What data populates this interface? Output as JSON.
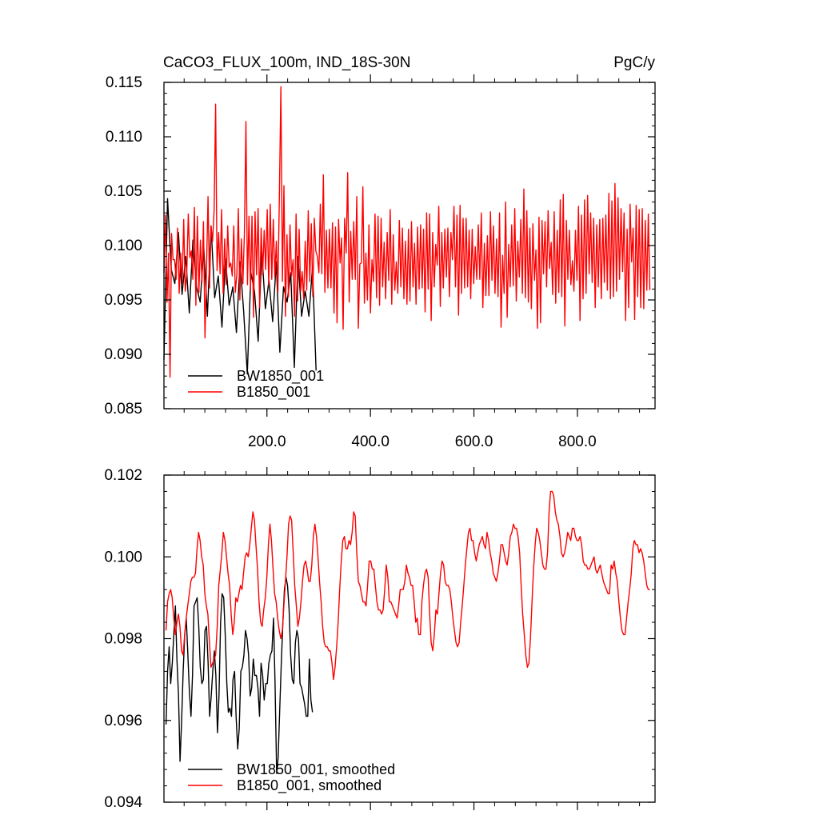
{
  "title_left": "CaCO3_FLUX_100m, IND_18S-30N",
  "title_right": "PgC/y",
  "chart_data": [
    {
      "type": "line",
      "title": "CaCO3_FLUX_100m, IND_18S-30N",
      "units": "PgC/y",
      "xlim": [
        1,
        950
      ],
      "ylim": [
        0.085,
        0.115
      ],
      "x_ticks": [
        200,
        400,
        600,
        800
      ],
      "x_tick_labels": [
        "200.0",
        "400.0",
        "600.0",
        "800.0"
      ],
      "y_ticks": [
        0.085,
        0.09,
        0.095,
        0.1,
        0.105,
        0.11,
        0.115
      ],
      "y_tick_labels": [
        "0.085",
        "0.090",
        "0.095",
        "0.100",
        "0.105",
        "0.110",
        "0.115"
      ],
      "legend_position": "bottom-left",
      "grid": false,
      "series": [
        {
          "name": "BW1850_001",
          "color": "#000000",
          "x_range": [
            1,
            295
          ],
          "x_step": 7,
          "values": [
            0.0895,
            0.1043,
            0.0978,
            0.0965,
            0.1012,
            0.0955,
            0.099,
            0.0938,
            0.1005,
            0.0962,
            0.0948,
            0.0998,
            0.0935,
            0.1018,
            0.0952,
            0.0972,
            0.0925,
            0.0988,
            0.0945,
            0.0962,
            0.092,
            0.0985,
            0.094,
            0.0882,
            0.0975,
            0.0958,
            0.0912,
            0.0995,
            0.0942,
            0.0968,
            0.093,
            0.0985,
            0.0902,
            0.0962,
            0.0948,
            0.0975,
            0.0888,
            0.099,
            0.0935,
            0.0958,
            0.0935,
            0.098,
            0.0885
          ]
        },
        {
          "name": "B1850_001",
          "color": "#ff0000",
          "x_range": [
            1,
            940
          ],
          "x_step": 3,
          "values": [
            0.0975,
            0.1028,
            0.0948,
            0.0993,
            0.0879,
            0.1011,
            0.0987,
            0.0987,
            0.0969,
            0.1016,
            0.0956,
            0.0993,
            0.0965,
            0.1024,
            0.0958,
            0.0974,
            0.1029,
            0.0989,
            0.0995,
            0.0969,
            0.1035,
            0.0945,
            0.1027,
            0.0957,
            0.1005,
            0.0966,
            0.1022,
            0.0915,
            0.0978,
            0.1045,
            0.0961,
            0.1018,
            0.1004,
            0.1032,
            0.113,
            0.0977,
            0.1012,
            0.0974,
            0.1033,
            0.0956,
            0.1006,
            0.0964,
            0.1018,
            0.098,
            0.0984,
            0.0972,
            0.1018,
            0.0957,
            0.0973,
            0.1034,
            0.095,
            0.1006,
            0.0965,
            0.1012,
            0.1114,
            0.0964,
            0.1027,
            0.0959,
            0.1027,
            0.0934,
            0.1031,
            0.0973,
            0.1034,
            0.0943,
            0.1016,
            0.0973,
            0.1014,
            0.0978,
            0.1033,
            0.0963,
            0.1038,
            0.0969,
            0.1024,
            0.0971,
            0.1004,
            0.0957,
            0.1045,
            0.1146,
            0.0967,
            0.1055,
            0.0935,
            0.101,
            0.0953,
            0.1019,
            0.0972,
            0.0987,
            0.0935,
            0.1029,
            0.0949,
            0.1015,
            0.0958,
            0.0976,
            0.0951,
            0.1004,
            0.0959,
            0.1032,
            0.0967,
            0.102,
            0.0953,
            0.1025,
            0.0995,
            0.099,
            0.0975,
            0.1038,
            0.0974,
            0.1065,
            0.0957,
            0.1014,
            0.0961,
            0.1015,
            0.0961,
            0.1021,
            0.0938,
            0.1017,
            0.0929,
            0.1024,
            0.0984,
            0.1007,
            0.0923,
            0.1025,
            0.0993,
            0.1067,
            0.0948,
            0.1013,
            0.0969,
            0.1022,
            0.0969,
            0.1045,
            0.0924,
            0.0983,
            0.0984,
            0.1054,
            0.0947,
            0.0993,
            0.095,
            0.1019,
            0.0938,
            0.0987,
            0.0967,
            0.1029,
            0.0952,
            0.1027,
            0.0945,
            0.1025,
            0.0962,
            0.1003,
            0.0951,
            0.1012,
            0.0968,
            0.1033,
            0.0946,
            0.101,
            0.0959,
            0.0985,
            0.0956,
            0.1023,
            0.0962,
            0.1016,
            0.0951,
            0.1004,
            0.0946,
            0.1015,
            0.0949,
            0.1022,
            0.0962,
            0.1002,
            0.0946,
            0.1017,
            0.096,
            0.1019,
            0.0961,
            0.1015,
            0.0939,
            0.103,
            0.096,
            0.1029,
            0.0931,
            0.1012,
            0.0962,
            0.1001,
            0.0982,
            0.1036,
            0.0944,
            0.1012,
            0.0961,
            0.1015,
            0.0971,
            0.1016,
            0.0953,
            0.1012,
            0.0987,
            0.1036,
            0.0962,
            0.1028,
            0.0936,
            0.1037,
            0.0956,
            0.1025,
            0.0961,
            0.1025,
            0.0962,
            0.1014,
            0.0951,
            0.1015,
            0.0965,
            0.0999,
            0.0969,
            0.1019,
            0.0969,
            0.103,
            0.0943,
            0.1002,
            0.0954,
            0.1009,
            0.0954,
            0.1031,
            0.0968,
            0.1018,
            0.0956,
            0.1006,
            0.0953,
            0.103,
            0.0925,
            0.0991,
            0.0956,
            0.104,
            0.0934,
            0.1001,
            0.0962,
            0.1019,
            0.0963,
            0.1034,
            0.0949,
            0.1004,
            0.0971,
            0.1024,
            0.0956,
            0.1052,
            0.0952,
            0.1032,
            0.0948,
            0.1016,
            0.0942,
            0.102,
            0.0968,
            0.0996,
            0.0924,
            0.1026,
            0.0929,
            0.1023,
            0.0974,
            0.1022,
            0.0962,
            0.1032,
            0.0979,
            0.1003,
            0.0955,
            0.1031,
            0.0947,
            0.1014,
            0.0957,
            0.1042,
            0.0953,
            0.1047,
            0.0926,
            0.1023,
            0.0969,
            0.1014,
            0.0964,
            0.0986,
            0.0958,
            0.1014,
            0.0968,
            0.1036,
            0.0931,
            0.1028,
            0.0951,
            0.1042,
            0.0956,
            0.1046,
            0.0974,
            0.103,
            0.0966,
            0.1025,
            0.0943,
            0.1019,
            0.0962,
            0.1024,
            0.0951,
            0.1025,
            0.0966,
            0.1028,
            0.0959,
            0.1048,
            0.0951,
            0.1041,
            0.0953,
            0.1057,
            0.0958,
            0.1044,
            0.0969,
            0.1034,
            0.0976,
            0.103,
            0.0931,
            0.1015,
            0.0943,
            0.1038,
            0.0985,
            0.1016,
            0.0932,
            0.1037,
            0.0953,
            0.1033,
            0.0943,
            0.1034,
            0.0942,
            0.1023,
            0.0959,
            0.1029,
            0.0959
          ]
        }
      ]
    },
    {
      "type": "line",
      "xlim": [
        1,
        950
      ],
      "ylim": [
        0.094,
        0.102
      ],
      "x_ticks": [
        200,
        400,
        600,
        800
      ],
      "x_tick_labels": [],
      "y_ticks": [
        0.094,
        0.096,
        0.098,
        0.1,
        0.102
      ],
      "y_tick_labels": [
        "0.094",
        "0.096",
        "0.098",
        "0.100",
        "0.102"
      ],
      "legend_position": "bottom-left",
      "grid": false,
      "series": [
        {
          "name": "BW1850_001, smoothed",
          "color": "#000000",
          "x_range": [
            5,
            288
          ],
          "x_step": 3,
          "values": [
            0.0959,
            0.0972,
            0.0978,
            0.0969,
            0.0974,
            0.0981,
            0.0988,
            0.0975,
            0.0966,
            0.095,
            0.096,
            0.0972,
            0.0981,
            0.0985,
            0.0976,
            0.0967,
            0.0961,
            0.0971,
            0.0988,
            0.0989,
            0.099,
            0.0983,
            0.0973,
            0.0969,
            0.097,
            0.0982,
            0.0983,
            0.0974,
            0.0961,
            0.0966,
            0.0972,
            0.0977,
            0.0971,
            0.0957,
            0.0966,
            0.0984,
            0.0991,
            0.099,
            0.0981,
            0.0969,
            0.0962,
            0.0963,
            0.0961,
            0.097,
            0.0972,
            0.0961,
            0.0953,
            0.0958,
            0.0972,
            0.0973,
            0.0976,
            0.0982,
            0.098,
            0.0976,
            0.0966,
            0.0968,
            0.0975,
            0.0971,
            0.0971,
            0.0968,
            0.0961,
            0.0974,
            0.0971,
            0.0965,
            0.0969,
            0.0969,
            0.0974,
            0.0976,
            0.0977,
            0.0985,
            0.0969,
            0.0947,
            0.0951,
            0.0963,
            0.0974,
            0.0984,
            0.0992,
            0.0995,
            0.0993,
            0.0987,
            0.0976,
            0.097,
            0.0969,
            0.0979,
            0.0982,
            0.098,
            0.0969,
            0.0968,
            0.0966,
            0.0964,
            0.0961,
            0.0961,
            0.0975,
            0.0965,
            0.0962
          ]
        },
        {
          "name": "B1850_001, smoothed",
          "color": "#ff0000",
          "x_range": [
            5,
            940
          ],
          "x_step": 3,
          "values": [
            0.0982,
            0.0989,
            0.0991,
            0.0992,
            0.099,
            0.0985,
            0.0981,
            0.0984,
            0.0986,
            0.0983,
            0.0977,
            0.0976,
            0.0981,
            0.0985,
            0.0988,
            0.0991,
            0.0994,
            0.0995,
            0.0995,
            0.0996,
            0.1002,
            0.1006,
            0.1004,
            0.1,
            0.0998,
            0.0991,
            0.0988,
            0.0986,
            0.0979,
            0.0973,
            0.0974,
            0.0975,
            0.0976,
            0.0983,
            0.0993,
            0.0997,
            0.1001,
            0.1006,
            0.1004,
            0.1,
            0.0996,
            0.0993,
            0.0986,
            0.0981,
            0.0984,
            0.099,
            0.0989,
            0.0991,
            0.0993,
            0.0992,
            0.0996,
            0.1,
            0.1001,
            0.1,
            0.1003,
            0.1007,
            0.1011,
            0.1009,
            0.1003,
            0.0997,
            0.0989,
            0.0984,
            0.0983,
            0.0987,
            0.099,
            0.0995,
            0.1003,
            0.1008,
            0.1004,
            0.0997,
            0.0991,
            0.0989,
            0.0985,
            0.0982,
            0.098,
            0.0982,
            0.0988,
            0.0994,
            0.1,
            0.1008,
            0.101,
            0.1009,
            0.1001,
            0.0993,
            0.0988,
            0.0983,
            0.0985,
            0.0989,
            0.0994,
            0.0998,
            0.0999,
            0.0997,
            0.0994,
            0.0994,
            0.0998,
            0.1005,
            0.1008,
            0.1005,
            0.1,
            0.0994,
            0.0989,
            0.0983,
            0.0979,
            0.0978,
            0.0978,
            0.0977,
            0.0977,
            0.0974,
            0.097,
            0.0973,
            0.0978,
            0.0984,
            0.0992,
            0.0999,
            0.1004,
            0.1005,
            0.1002,
            0.1002,
            0.1004,
            0.1003,
            0.1006,
            0.1011,
            0.101,
            0.1001,
            0.0994,
            0.0993,
            0.0991,
            0.0989,
            0.0989,
            0.0988,
            0.0993,
            0.0999,
            0.0999,
            0.0997,
            0.0997,
            0.0993,
            0.0989,
            0.0987,
            0.0987,
            0.0986,
            0.0987,
            0.0992,
            0.0998,
            0.0995,
            0.0989,
            0.0989,
            0.0988,
            0.0987,
            0.0986,
            0.0985,
            0.0988,
            0.0992,
            0.0992,
            0.0992,
            0.0994,
            0.0998,
            0.0996,
            0.0995,
            0.0993,
            0.0993,
            0.0989,
            0.0984,
            0.0985,
            0.0981,
            0.0981,
            0.0989,
            0.0993,
            0.0996,
            0.0997,
            0.0995,
            0.0986,
            0.0979,
            0.0977,
            0.0981,
            0.0987,
            0.0986,
            0.0991,
            0.0996,
            0.0999,
            0.0998,
            0.0994,
            0.0993,
            0.0993,
            0.0992,
            0.0989,
            0.0985,
            0.0982,
            0.0979,
            0.0978,
            0.0979,
            0.0984,
            0.0988,
            0.0993,
            0.0998,
            0.1002,
            0.1006,
            0.1007,
            0.1004,
            0.1004,
            0.1001,
            0.0999,
            0.1001,
            0.1003,
            0.1004,
            0.1005,
            0.1003,
            0.1002,
            0.1006,
            0.1004,
            0.1001,
            0.0999,
            0.0996,
            0.0995,
            0.0994,
            0.0996,
            0.0999,
            0.1003,
            0.1003,
            0.1001,
            0.0999,
            0.0998,
            0.1001,
            0.1005,
            0.1006,
            0.1008,
            0.1007,
            0.1007,
            0.1005,
            0.1001,
            0.0993,
            0.0986,
            0.0981,
            0.0976,
            0.0973,
            0.0974,
            0.098,
            0.0989,
            0.0997,
            0.1003,
            0.1007,
            0.1006,
            0.1004,
            0.1001,
            0.0998,
            0.0997,
            0.0997,
            0.1001,
            0.1011,
            0.1016,
            0.1016,
            0.1015,
            0.1011,
            0.1009,
            0.1008,
            0.1005,
            0.1001,
            0.1,
            0.1001,
            0.1003,
            0.1006,
            0.1005,
            0.1004,
            0.1007,
            0.1007,
            0.1005,
            0.1004,
            0.1004,
            0.1005,
            0.1003,
            0.0999,
            0.0998,
            0.0998,
            0.0997,
            0.0997,
            0.0998,
            0.0999,
            0.1,
            0.0997,
            0.0996,
            0.0997,
            0.0998,
            0.0996,
            0.0994,
            0.0993,
            0.0992,
            0.0991,
            0.0991,
            0.0998,
            0.0997,
            0.0999,
            0.0996,
            0.0994,
            0.0989,
            0.0985,
            0.0982,
            0.0981,
            0.0981,
            0.0985,
            0.0989,
            0.0992,
            0.0996,
            0.1002,
            0.1004,
            0.1003,
            0.1003,
            0.1001,
            0.1002,
            0.1001,
            0.0999,
            0.0996,
            0.0993,
            0.0992,
            0.0992
          ]
        }
      ]
    }
  ]
}
